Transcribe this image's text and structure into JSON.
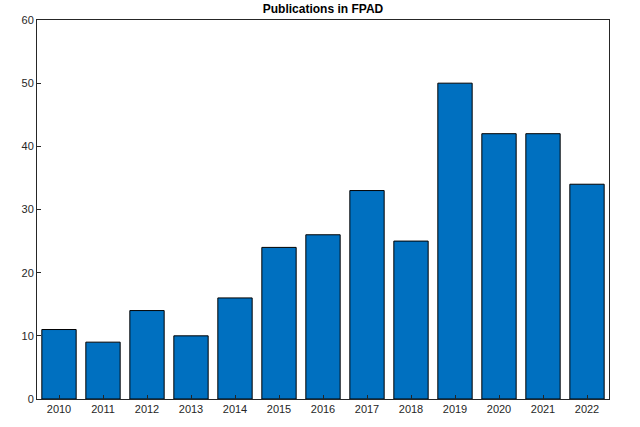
{
  "chart_data": {
    "type": "bar",
    "title": "Publications in FPAD",
    "categories": [
      "2010",
      "2011",
      "2012",
      "2013",
      "2014",
      "2015",
      "2016",
      "2017",
      "2018",
      "2019",
      "2020",
      "2021",
      "2022"
    ],
    "values": [
      11,
      9,
      14,
      10,
      16,
      24,
      26,
      33,
      25,
      50,
      42,
      42,
      34
    ],
    "color": "#0070c0",
    "ylim": [
      0,
      60
    ],
    "yticks": [
      0,
      10,
      20,
      30,
      40,
      50,
      60
    ],
    "grid": false
  }
}
